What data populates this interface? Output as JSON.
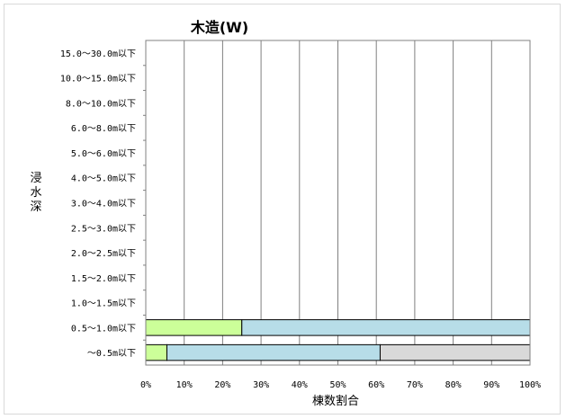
{
  "chart_data": {
    "type": "bar",
    "orientation": "horizontal",
    "stacked": true,
    "title": "木造(W)",
    "xlabel": "棟数割合",
    "ylabel": "浸水深",
    "xlim": [
      0,
      100
    ],
    "x_ticks": [
      "0%",
      "10%",
      "20%",
      "30%",
      "40%",
      "50%",
      "60%",
      "70%",
      "80%",
      "90%",
      "100%"
    ],
    "grid": "vertical",
    "legend": "none",
    "categories": [
      "15.0～30.0m以下",
      "10.0～15.0m以下",
      "8.0～10.0m以下",
      "6.0～8.0m以下",
      "5.0～6.0m以下",
      "4.0～5.0m以下",
      "3.0～4.0m以下",
      "2.5～3.0m以下",
      "2.0～2.5m以下",
      "1.5～2.0m以下",
      "1.0～1.5m以下",
      "0.5～1.0m以下",
      "～0.5m以下"
    ],
    "series": [
      {
        "color": "#ccff99",
        "values": [
          0,
          0,
          0,
          0,
          0,
          0,
          0,
          0,
          0,
          0,
          0,
          25,
          5.5
        ]
      },
      {
        "color": "#b7dde8",
        "values": [
          0,
          0,
          0,
          0,
          0,
          0,
          0,
          0,
          0,
          0,
          0,
          75,
          55.5
        ]
      },
      {
        "color": "#d9d9d9",
        "values": [
          0,
          0,
          0,
          0,
          0,
          0,
          0,
          0,
          0,
          0,
          0,
          0,
          39
        ]
      }
    ]
  }
}
